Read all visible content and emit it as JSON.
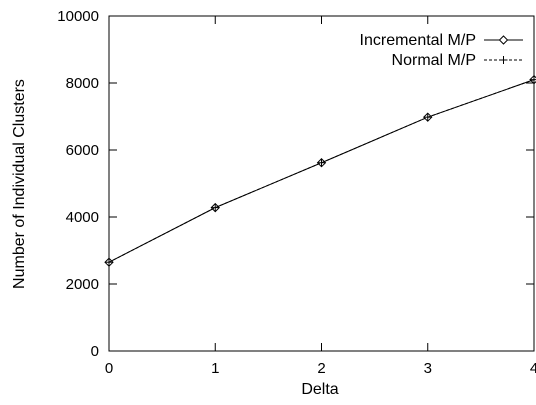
{
  "chart_data": {
    "type": "line",
    "title": "",
    "xlabel": "Delta",
    "ylabel": "Number of Individual Clusters",
    "xlim": [
      0,
      4
    ],
    "ylim": [
      0,
      10000
    ],
    "x_ticks": [
      0,
      1,
      2,
      3,
      4
    ],
    "y_ticks": [
      0,
      2000,
      4000,
      6000,
      8000,
      10000
    ],
    "grid": false,
    "legend_position": "top-right",
    "x": [
      0,
      1,
      2,
      3,
      4
    ],
    "series": [
      {
        "name": "Incremental M/P",
        "marker": "diamond",
        "line_style": "solid",
        "color": "#000000",
        "values": [
          2650,
          4280,
          5620,
          6980,
          8100
        ]
      },
      {
        "name": "Normal M/P",
        "marker": "plus",
        "line_style": "dashed",
        "color": "#000000",
        "values": [
          2650,
          4280,
          5620,
          6980,
          8100
        ]
      }
    ]
  }
}
